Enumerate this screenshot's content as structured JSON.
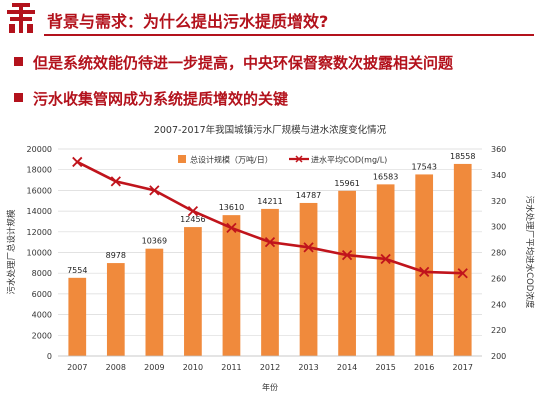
{
  "slide": {
    "title": "背景与需求：为什么提出污水提质增效?",
    "bullets": [
      "但是系统效能仍待进一步提高，中央环保督察数次披露相关问题",
      "污水收集管网成为系统提质增效的关键"
    ]
  },
  "colors": {
    "brand_red": "#b3121c",
    "bar": "#f08a3c",
    "line": "#c0141c"
  },
  "icons": {
    "logo": "university-logo-icon"
  },
  "chart_data": {
    "type": "bar",
    "title": "2007-2017年我国城镇污水厂规模与进水浓度变化情况",
    "categories": [
      "2007",
      "2008",
      "2009",
      "2010",
      "2011",
      "2012",
      "2013",
      "2014",
      "2015",
      "2016",
      "2017"
    ],
    "xlabel": "年份",
    "ylabel": "污水处理厂总设计规模",
    "y2label": "污水处理厂平均进水COD浓度",
    "ylim": [
      0,
      20000
    ],
    "yticks": [
      "0",
      "2000",
      "4000",
      "6000",
      "8000",
      "10000",
      "12000",
      "14000",
      "16000",
      "18000",
      "20000"
    ],
    "y2lim": [
      200,
      360
    ],
    "y2ticks": [
      "200",
      "220",
      "240",
      "260",
      "280",
      "300",
      "320",
      "340",
      "360"
    ],
    "grid": true,
    "legend_position": "top",
    "series": [
      {
        "name": "总设计规模（万吨/日）",
        "type": "bar",
        "values": [
          7554,
          8978,
          10369,
          12456,
          13610,
          14211,
          14787,
          15961,
          16583,
          17543,
          18558
        ],
        "labels": [
          "7554",
          "8978",
          "10369",
          "12456",
          "13610",
          "14211",
          "14787",
          "15961",
          "16583",
          "17543",
          "18558"
        ]
      },
      {
        "name": "进水平均COD(mg/L)",
        "type": "line",
        "axis": "right",
        "values": [
          350,
          335,
          328,
          312,
          299,
          288,
          284,
          278,
          275,
          265,
          264
        ]
      }
    ]
  }
}
